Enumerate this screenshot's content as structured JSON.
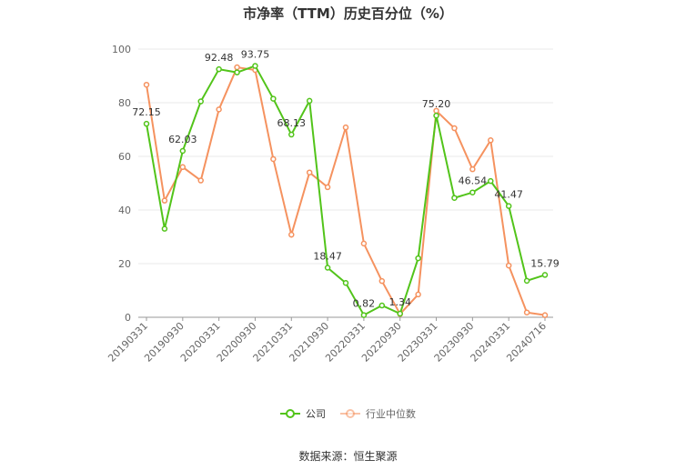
{
  "title": "市净率（TTM）历史百分位（%）",
  "source": "数据来源：恒生聚源",
  "colors": {
    "company": "#52c41a",
    "industry": "#f5925f",
    "grid": "#e8e8e8",
    "axis": "#666666"
  },
  "chart_data": {
    "type": "line",
    "title": "市净率（TTM）历史百分位（%）",
    "ylim": [
      0,
      100
    ],
    "yticks": [
      0,
      20,
      40,
      60,
      80,
      100
    ],
    "xtick_labels": [
      "20190331",
      "20190930",
      "20200331",
      "20200930",
      "20210331",
      "20210930",
      "20220331",
      "20220930",
      "20230331",
      "20230930",
      "20240331",
      "20240716"
    ],
    "x": [
      "20190331",
      "20190630",
      "20190930",
      "20191231",
      "20200331",
      "20200630",
      "20200930",
      "20201231",
      "20210331",
      "20210630",
      "20210930",
      "20211231",
      "20220331",
      "20220630",
      "20220930",
      "20221231",
      "20230331",
      "20230630",
      "20230930",
      "20231231",
      "20240331",
      "20240630",
      "20240716"
    ],
    "legend_position": "bottom-center",
    "series": [
      {
        "name": "公司",
        "values": [
          72.15,
          33.0,
          62.03,
          80.5,
          92.48,
          91.3,
          93.75,
          81.5,
          68.13,
          80.7,
          18.47,
          12.8,
          0.82,
          4.4,
          1.34,
          22.0,
          75.2,
          44.5,
          46.54,
          50.8,
          41.47,
          13.6,
          15.79
        ],
        "labels": [
          "72.15",
          "",
          "62.03",
          "",
          "92.48",
          "",
          "93.75",
          "",
          "68.13",
          "",
          "18.47",
          "",
          "0.82",
          "",
          "1.34",
          "",
          "75.20",
          "",
          "46.54",
          "",
          "41.47",
          "",
          "15.79"
        ]
      },
      {
        "name": "行业中位数",
        "values": [
          86.7,
          43.5,
          56.0,
          51.0,
          77.5,
          93.2,
          92.2,
          59.0,
          30.8,
          54.0,
          48.5,
          70.8,
          27.5,
          13.5,
          1.2,
          8.5,
          77.0,
          70.5,
          55.2,
          66.0,
          19.3,
          1.8,
          0.8
        ]
      }
    ]
  }
}
